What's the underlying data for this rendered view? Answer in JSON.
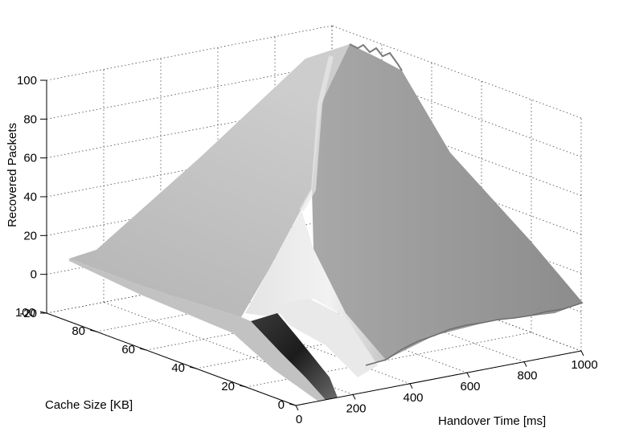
{
  "chart_data": {
    "type": "surface",
    "xlabel": "Handover Time [ms]",
    "ylabel": "Cache Size [KB]",
    "zlabel": "Recovered Packets",
    "x_ticks": [
      "0",
      "200",
      "400",
      "600",
      "800",
      "1000"
    ],
    "y_ticks": [
      "0",
      "20",
      "40",
      "60",
      "80",
      "100"
    ],
    "z_ticks": [
      "-20",
      "0",
      "20",
      "40",
      "60",
      "80",
      "100"
    ],
    "xlim": [
      0,
      1000
    ],
    "ylim": [
      0,
      100
    ],
    "zlim": [
      -20,
      100
    ],
    "grid": true,
    "surface": {
      "handover_time_ms": [
        0,
        100,
        200,
        300,
        400,
        500,
        600,
        700,
        800,
        900,
        1000
      ],
      "cache_size_kb": [
        0,
        20,
        40,
        60,
        80,
        100
      ],
      "recovered_packets": [
        [
          0,
          0,
          0,
          0,
          0,
          0,
          0,
          0,
          0,
          0,
          0
        ],
        [
          0,
          15,
          20,
          20,
          20,
          20,
          20,
          20,
          20,
          20,
          20
        ],
        [
          0,
          30,
          40,
          40,
          40,
          40,
          40,
          40,
          40,
          40,
          40
        ],
        [
          0,
          45,
          55,
          58,
          60,
          60,
          60,
          60,
          60,
          60,
          60
        ],
        [
          0,
          55,
          70,
          76,
          80,
          80,
          80,
          80,
          80,
          80,
          80
        ],
        [
          0,
          60,
          85,
          95,
          100,
          100,
          100,
          100,
          100,
          100,
          100
        ]
      ]
    }
  }
}
